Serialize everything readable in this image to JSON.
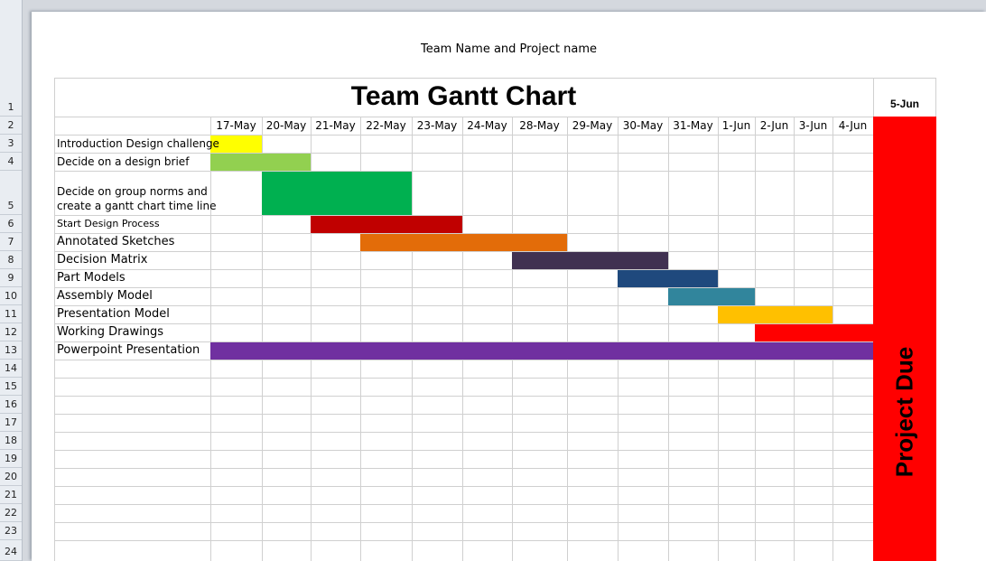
{
  "page_header": "Team Name and Project name",
  "title": "Team Gantt Chart",
  "due_date": "5-Jun",
  "due_label": "Project Due",
  "row_numbers": [
    "1",
    "2",
    "3",
    "4",
    "5",
    "6",
    "7",
    "8",
    "9",
    "10",
    "11",
    "12",
    "13",
    "14",
    "15",
    "16",
    "17",
    "18",
    "19",
    "20",
    "21",
    "22",
    "23",
    "24"
  ],
  "dates": [
    "17-May",
    "20-May",
    "21-May",
    "22-May",
    "23-May",
    "24-May",
    "28-May",
    "29-May",
    "30-May",
    "31-May",
    "1-Jun",
    "2-Jun",
    "3-Jun",
    "4-Jun"
  ],
  "tasks": [
    {
      "name": "Introduction Design challenge",
      "start": 0,
      "end": 1,
      "color": "#ffff00"
    },
    {
      "name": "Decide on a design brief",
      "start": 0,
      "end": 2,
      "color": "#92d050"
    },
    {
      "name": "Decide on group norms and\ncreate a gantt chart time line",
      "start": 1,
      "end": 4,
      "color": "#00b050"
    },
    {
      "name": "Start Design Process",
      "start": 2,
      "end": 5,
      "color": "#c00000"
    },
    {
      "name": "Annotated Sketches",
      "start": 3,
      "end": 7,
      "color": "#e36c09"
    },
    {
      "name": "Decision Matrix",
      "start": 6,
      "end": 9,
      "color": "#403151"
    },
    {
      "name": "Part Models",
      "start": 8,
      "end": 10,
      "color": "#1f497d"
    },
    {
      "name": "Assembly Model",
      "start": 9,
      "end": 11,
      "color": "#31859c"
    },
    {
      "name": "Presentation Model",
      "start": 10,
      "end": 13,
      "color": "#ffc000"
    },
    {
      "name": "Working Drawings",
      "start": 11,
      "end": 15,
      "color": "#ff0000"
    },
    {
      "name": "Powerpoint Presentation",
      "start": 0,
      "end": 15,
      "color": "#7030a0"
    }
  ]
}
